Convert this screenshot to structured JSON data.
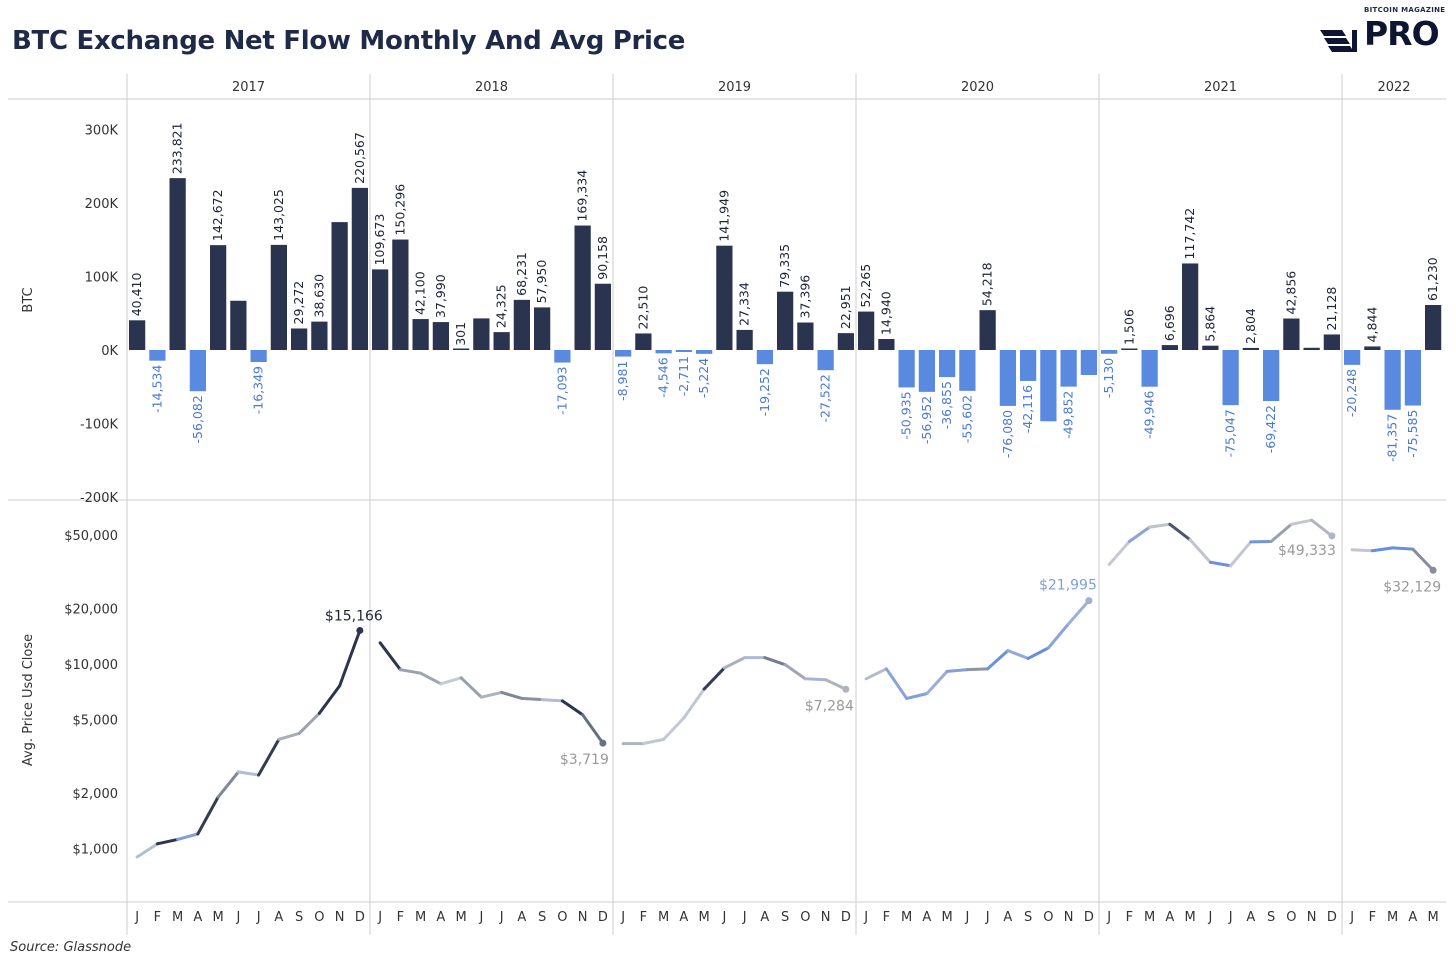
{
  "title": "BTC Exchange Net Flow Monthly And Avg Price",
  "source": "Source: Glassnode",
  "logo": {
    "small": "BITCOIN MAGAZINE",
    "big": "PRO"
  },
  "colors": {
    "positive": "#2b344f",
    "negative": "#5a8ae0",
    "grid": "#cccccc",
    "text": "#333333"
  },
  "chart_data": [
    {
      "type": "bar",
      "ylabel": "BTC",
      "ylim": [
        -200000,
        330000
      ],
      "yticks": [
        -200000,
        -100000,
        0,
        100000,
        200000,
        300000
      ],
      "yticklabels": [
        "-200K",
        "-100K",
        "0K",
        "100K",
        "200K",
        "300K"
      ],
      "years": [
        "2017",
        "2018",
        "2019",
        "2020",
        "2021",
        "2022"
      ],
      "month_labels": [
        "J",
        "F",
        "M",
        "A",
        "M",
        "J",
        "J",
        "A",
        "S",
        "O",
        "N",
        "D"
      ],
      "series": [
        {
          "year": "2017",
          "values": [
            40410,
            -14534,
            233821,
            -56082,
            142672,
            67000,
            -16349,
            143025,
            29272,
            38630,
            174000,
            220567
          ],
          "labels": [
            "40,410",
            "-14,534",
            "233,821",
            "-56,082",
            "142,672",
            "",
            "-16,349",
            "143,025",
            "29,272",
            "38,630",
            "",
            "220,567"
          ]
        },
        {
          "year": "2018",
          "values": [
            109673,
            150296,
            42100,
            37990,
            301,
            43000,
            24325,
            68231,
            57950,
            -17093,
            169334,
            90158
          ],
          "labels": [
            "109,673",
            "150,296",
            "42,100",
            "37,990",
            "301",
            "",
            "24,325",
            "68,231",
            "57,950",
            "-17,093",
            "169,334",
            "90,158"
          ]
        },
        {
          "year": "2019",
          "values": [
            -8981,
            22510,
            -4546,
            -2711,
            -5224,
            141949,
            27334,
            -19252,
            79335,
            37396,
            -27522,
            22951
          ],
          "labels": [
            "-8,981",
            "22,510",
            "-4,546",
            "-2,711",
            "-5,224",
            "141,949",
            "27,334",
            "-19,252",
            "79,335",
            "37,396",
            "-27,522",
            "22,951"
          ]
        },
        {
          "year": "2020",
          "values": [
            52265,
            14940,
            -50935,
            -56952,
            -36855,
            -55602,
            54218,
            -76080,
            -42116,
            -97000,
            -49852,
            -34000
          ],
          "labels": [
            "52,265",
            "14,940",
            "-50,935",
            "-56,952",
            "-36,855",
            "-55,602",
            "54,218",
            "-76,080",
            "-42,116",
            "",
            "-49,852",
            ""
          ]
        },
        {
          "year": "2021",
          "values": [
            -5130,
            1506,
            -49946,
            6696,
            117742,
            5864,
            -75047,
            2804,
            -69422,
            42856,
            3000,
            21128
          ],
          "labels": [
            "-5,130",
            "1,506",
            "-49,946",
            "6,696",
            "117,742",
            "5,864",
            "-75,047",
            "2,804",
            "-69,422",
            "42,856",
            "",
            "21,128"
          ]
        },
        {
          "year": "2022",
          "values": [
            -20248,
            4844,
            -81357,
            -75585,
            61230
          ],
          "labels": [
            "-20,248",
            "4,844",
            "-81,357",
            "-75,585",
            "61,230"
          ]
        }
      ]
    },
    {
      "type": "line",
      "ylabel": "Avg. Price Usd Close",
      "yscale": "log",
      "ylim": [
        700,
        70000
      ],
      "yticks": [
        1000,
        2000,
        5000,
        10000,
        20000,
        50000
      ],
      "yticklabels": [
        "$1,000",
        "$2,000",
        "$5,000",
        "$10,000",
        "$20,000",
        "$50,000"
      ],
      "series": [
        {
          "year": "2017",
          "values": [
            900,
            1060,
            1120,
            1200,
            1900,
            2600,
            2500,
            3900,
            4200,
            5400,
            7600,
            15166
          ],
          "end_label": "$15,166"
        },
        {
          "year": "2018",
          "values": [
            13000,
            9300,
            8900,
            7800,
            8400,
            6600,
            7000,
            6500,
            6400,
            6300,
            5300,
            3719
          ],
          "end_label": "$3,719"
        },
        {
          "year": "2019",
          "values": [
            3700,
            3700,
            3900,
            5100,
            7300,
            9500,
            10800,
            10800,
            9900,
            8300,
            8200,
            7284
          ],
          "end_label": "$7,284"
        },
        {
          "year": "2020",
          "values": [
            8300,
            9400,
            6500,
            6900,
            9100,
            9300,
            9400,
            11800,
            10700,
            12200,
            16500,
            21995
          ],
          "end_label": "$21,995"
        },
        {
          "year": "2021",
          "values": [
            34500,
            46000,
            55000,
            57000,
            47000,
            35500,
            34000,
            45800,
            46000,
            57000,
            60000,
            49333
          ],
          "end_label": "$49,333"
        },
        {
          "year": "2022",
          "values": [
            41500,
            41000,
            42500,
            41800,
            32129
          ],
          "end_label": "$32,129"
        }
      ]
    }
  ]
}
